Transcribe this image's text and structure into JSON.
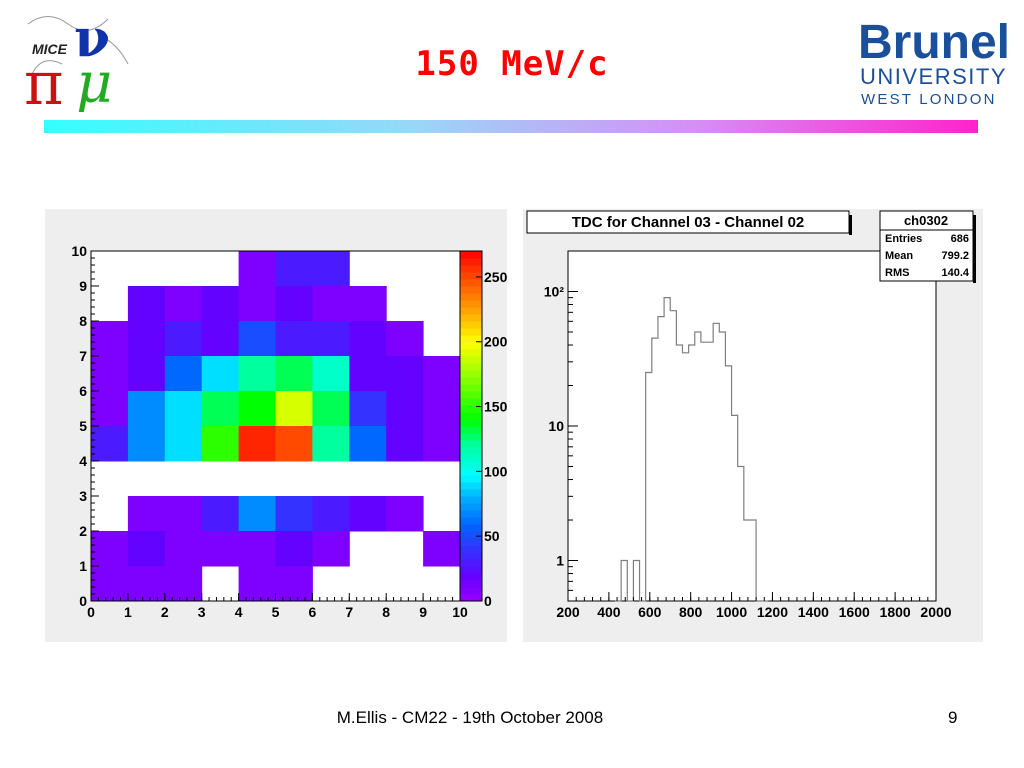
{
  "slide": {
    "title": "150 MeV/c",
    "footer": "M.Ellis - CM22 - 19th October 2008",
    "page_number": "9"
  },
  "logos": {
    "left": {
      "text": "MICE",
      "glyphs": "πνμ",
      "colors": [
        "#cc1111",
        "#1133aa",
        "#22aa22"
      ]
    },
    "right": {
      "line1": "Brunel",
      "line2": "UNIVERSITY",
      "line3": "WEST LONDON",
      "color": "#1a4f9c"
    }
  },
  "colors": {
    "title": "#ff0000",
    "frame_bg": "#eeeeee",
    "hist_line": "#7f7f7f"
  },
  "chart_data": [
    {
      "type": "heatmap",
      "title": "",
      "xlabel": "",
      "ylabel": "",
      "xlim": [
        0,
        10
      ],
      "ylim": [
        0,
        10
      ],
      "x_ticks": [
        "0",
        "1",
        "2",
        "3",
        "4",
        "5",
        "6",
        "7",
        "8",
        "9",
        "10"
      ],
      "y_ticks": [
        "0",
        "1",
        "2",
        "3",
        "4",
        "5",
        "6",
        "7",
        "8",
        "9",
        "10"
      ],
      "z_range": [
        0,
        270
      ],
      "colorbar_ticks": [
        "0",
        "50",
        "100",
        "150",
        "200",
        "250"
      ],
      "rows_top_to_bottom": [
        [
          0,
          0,
          0,
          0,
          10,
          30,
          30,
          0,
          0,
          0
        ],
        [
          0,
          20,
          10,
          20,
          10,
          20,
          10,
          10,
          0,
          0
        ],
        [
          10,
          20,
          30,
          20,
          50,
          30,
          30,
          20,
          10,
          0
        ],
        [
          10,
          20,
          60,
          90,
          120,
          130,
          110,
          20,
          20,
          10
        ],
        [
          10,
          70,
          90,
          130,
          140,
          190,
          130,
          40,
          20,
          10
        ],
        [
          30,
          70,
          90,
          150,
          260,
          250,
          120,
          60,
          20,
          10
        ],
        [
          0,
          0,
          0,
          0,
          0,
          0,
          0,
          0,
          0,
          0
        ],
        [
          0,
          10,
          10,
          30,
          70,
          40,
          30,
          20,
          10,
          0
        ],
        [
          10,
          20,
          10,
          10,
          10,
          20,
          10,
          0,
          0,
          10
        ],
        [
          10,
          10,
          10,
          0,
          10,
          10,
          0,
          0,
          0,
          0
        ]
      ]
    },
    {
      "type": "histogram",
      "title": "TDC for Channel 03 - Channel 02",
      "xlabel": "",
      "ylabel": "",
      "xlim": [
        200,
        2000
      ],
      "ylim": [
        0.5,
        200
      ],
      "y_scale": "log",
      "x_ticks": [
        "200",
        "400",
        "600",
        "800",
        "1000",
        "1200",
        "1400",
        "1600",
        "1800",
        "2000"
      ],
      "y_ticks": [
        {
          "value": 1,
          "label": "1"
        },
        {
          "value": 10,
          "label": "10"
        },
        {
          "value": 100,
          "label": "10²"
        }
      ],
      "bin_width": 30,
      "bin_starts": [
        430,
        460,
        490,
        520,
        550,
        580,
        610,
        640,
        670,
        700,
        730,
        760,
        790,
        820,
        850,
        880,
        910,
        940,
        970,
        1000,
        1030,
        1060,
        1090,
        1120,
        1150
      ],
      "counts": [
        0,
        1,
        0,
        1,
        0,
        25,
        45,
        65,
        90,
        72,
        40,
        35,
        40,
        50,
        42,
        42,
        58,
        50,
        28,
        12,
        5,
        2,
        2,
        0.4,
        0
      ],
      "stats_box": {
        "name": "ch0302",
        "rows": [
          {
            "label": "Entries",
            "value": "686"
          },
          {
            "label": "Mean",
            "value": "799.2"
          },
          {
            "label": "RMS",
            "value": "140.4"
          }
        ]
      }
    }
  ]
}
